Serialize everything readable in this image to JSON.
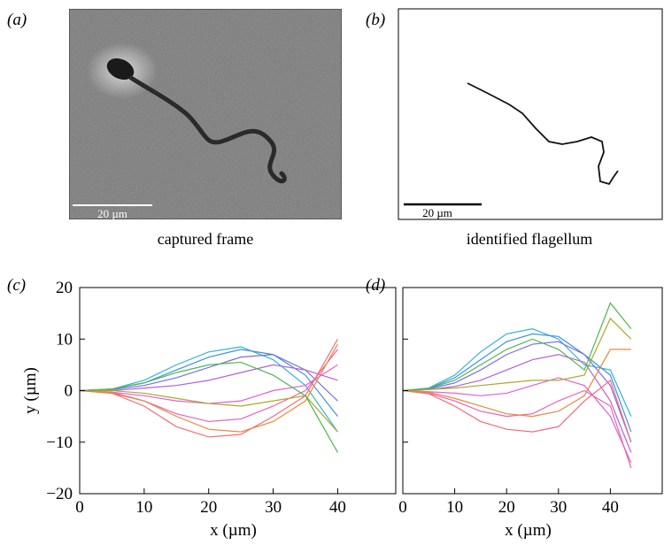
{
  "figure": {
    "panels": [
      {
        "label": "(a)",
        "caption": "captured frame",
        "scale_bar": "20 µm"
      },
      {
        "label": "(b)",
        "caption": "identified flagellum",
        "scale_bar": "20 µm"
      }
    ]
  },
  "chart_data": [
    {
      "type": "line",
      "panel_label": "(c)",
      "xlabel": "x (µm)",
      "ylabel": "y (µm)",
      "x": [
        0,
        5,
        10,
        15,
        20,
        25,
        30,
        35,
        40
      ],
      "xlim": [
        0,
        49
      ],
      "ylim": [
        -20,
        20
      ],
      "xticks": [
        0,
        10,
        20,
        30,
        40
      ],
      "yticks": [
        {
          "value": -20,
          "label": "−20"
        },
        {
          "value": -10,
          "label": "−10"
        },
        0,
        10,
        20
      ],
      "show_ytick_labels": true,
      "series": [
        {
          "color": "#2fb4d6",
          "values": [
            0,
            0.3,
            2,
            5,
            7.5,
            8.5,
            6,
            1,
            -8
          ]
        },
        {
          "color": "#3f8fe0",
          "values": [
            0,
            0.3,
            1.5,
            4,
            6.5,
            8,
            7,
            3,
            -5
          ]
        },
        {
          "color": "#7b6ee6",
          "values": [
            0,
            0.2,
            1,
            2.5,
            4.5,
            6.5,
            7,
            4,
            -2
          ]
        },
        {
          "color": "#b25fe0",
          "values": [
            0,
            0,
            0.5,
            1,
            2,
            3.5,
            5,
            4,
            2
          ]
        },
        {
          "color": "#e060d8",
          "values": [
            0,
            -0.3,
            -1,
            -2,
            -2.5,
            -2,
            0,
            1,
            5
          ]
        },
        {
          "color": "#f05fb0",
          "values": [
            0,
            -0.5,
            -2,
            -4.5,
            -6,
            -5.5,
            -3,
            0,
            8
          ]
        },
        {
          "color": "#f26a7c",
          "values": [
            0,
            -0.5,
            -3,
            -7,
            -9,
            -8.5,
            -5,
            -1,
            10
          ]
        },
        {
          "color": "#e58a3a",
          "values": [
            0,
            -0.3,
            -2,
            -5,
            -7.5,
            -8,
            -6,
            -2,
            9
          ]
        },
        {
          "color": "#a9a92a",
          "values": [
            0,
            0,
            -0.5,
            -1.5,
            -2.5,
            -3,
            -2,
            -1,
            -8
          ]
        },
        {
          "color": "#4cb84a",
          "values": [
            0,
            0.3,
            1.5,
            3.5,
            5,
            5.5,
            3,
            -1,
            -12
          ]
        }
      ]
    },
    {
      "type": "line",
      "panel_label": "(d)",
      "xlabel": "x (µm)",
      "x": [
        0,
        5,
        10,
        15,
        20,
        25,
        30,
        35,
        40,
        44
      ],
      "xlim": [
        0,
        50
      ],
      "ylim": [
        -20,
        20
      ],
      "xticks": [
        0,
        10,
        20,
        30,
        40
      ],
      "yticks": [
        -20,
        -10,
        0,
        10,
        20
      ],
      "show_ytick_labels": false,
      "series": [
        {
          "color": "#2fb4d6",
          "values": [
            0,
            0.5,
            3,
            7.5,
            11,
            12,
            10,
            5,
            4,
            -5
          ]
        },
        {
          "color": "#3f8fe0",
          "values": [
            0,
            0.4,
            2.5,
            6,
            9.5,
            11,
            10.5,
            7,
            3,
            -8
          ]
        },
        {
          "color": "#7b6ee6",
          "values": [
            0,
            0.3,
            1.5,
            4,
            7,
            9,
            9.5,
            7,
            1,
            -10
          ]
        },
        {
          "color": "#b25fe0",
          "values": [
            0,
            0.2,
            0.8,
            2,
            4,
            6,
            7,
            5.5,
            -2,
            -12
          ]
        },
        {
          "color": "#e060d8",
          "values": [
            0,
            -0.2,
            -0.5,
            -1,
            -0.5,
            1,
            2.5,
            1,
            -5,
            -14
          ]
        },
        {
          "color": "#f05fb0",
          "values": [
            0,
            -0.5,
            -2,
            -4,
            -5,
            -4.5,
            -2,
            0,
            -3,
            -15
          ]
        },
        {
          "color": "#f26a7c",
          "values": [
            0,
            -0.6,
            -3,
            -6,
            -7.5,
            -8,
            -7,
            -2,
            2,
            -10
          ]
        },
        {
          "color": "#e58a3a",
          "values": [
            0,
            -0.3,
            -1.5,
            -3,
            -4.5,
            -5,
            -4,
            -1,
            8,
            8
          ]
        },
        {
          "color": "#a9a92a",
          "values": [
            0,
            0.2,
            0.5,
            1,
            1.5,
            2,
            2,
            3,
            14,
            10
          ]
        },
        {
          "color": "#4cb84a",
          "values": [
            0,
            0.4,
            2,
            5,
            8,
            10,
            8,
            4,
            17,
            12
          ]
        }
      ]
    }
  ]
}
